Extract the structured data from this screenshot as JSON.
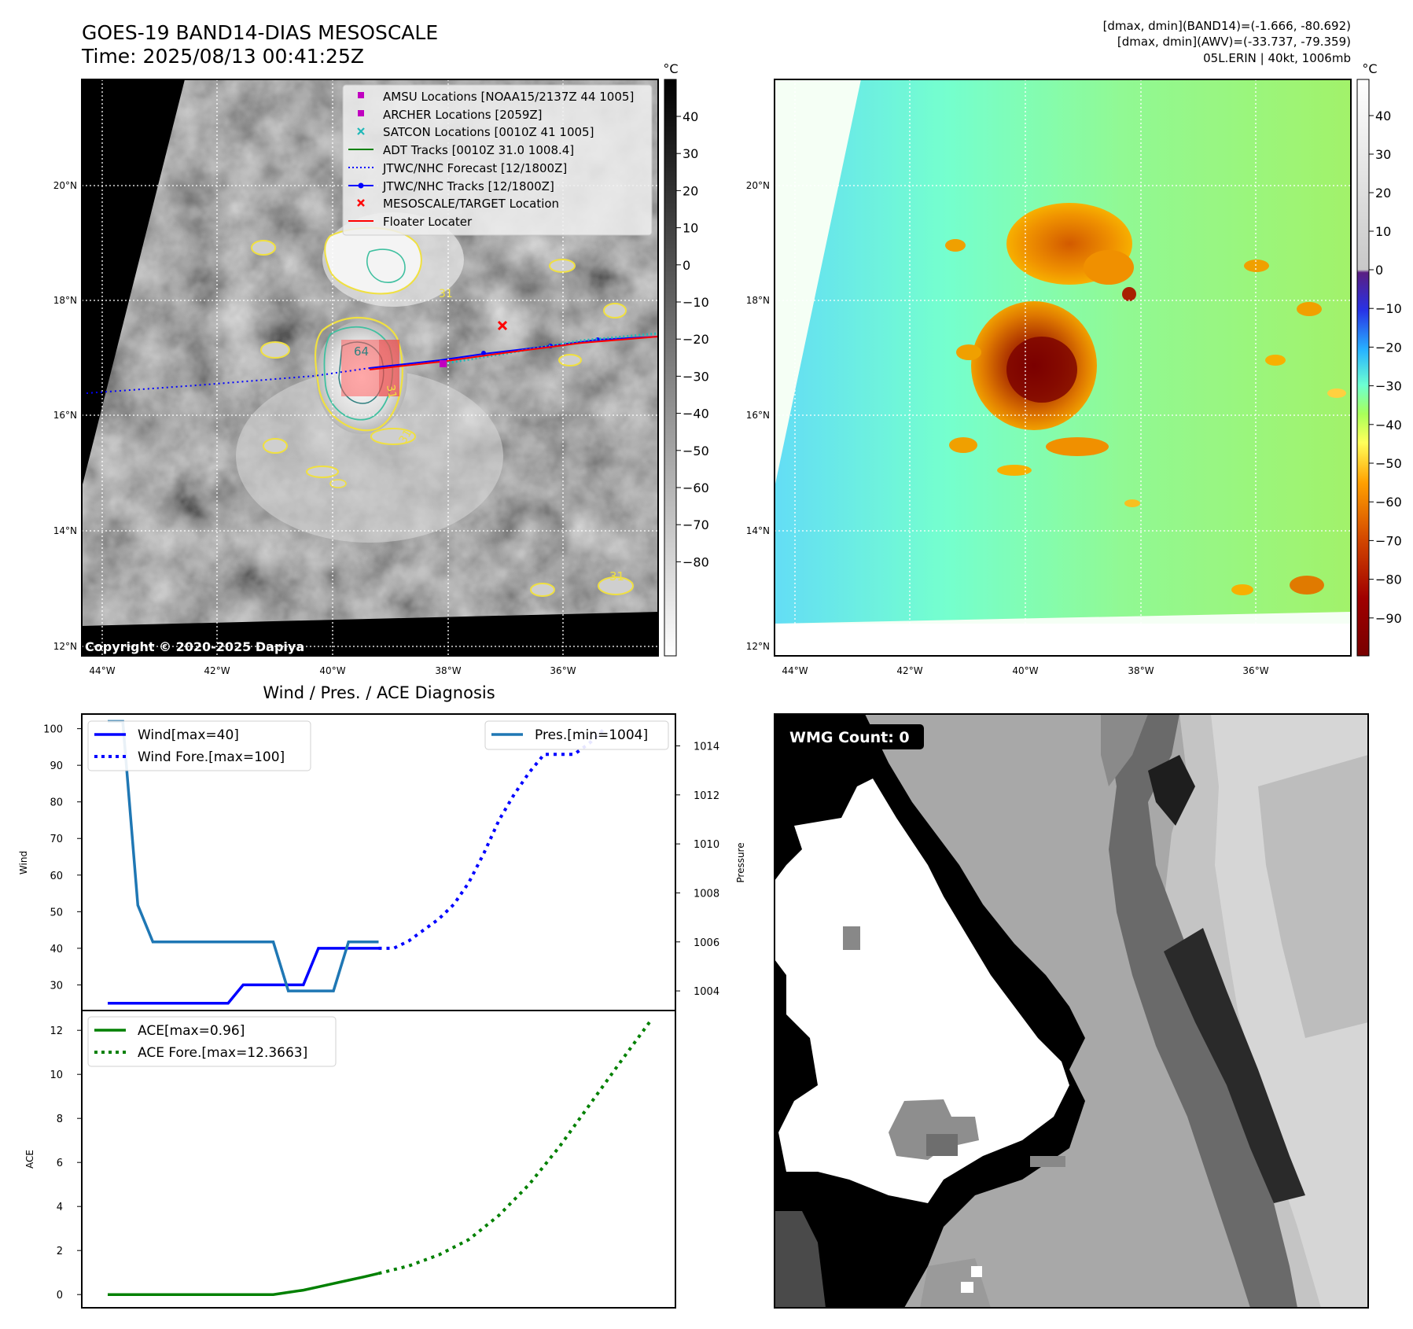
{
  "header": {
    "title_line1": "GOES-19 BAND14-DIAS MESOSCALE",
    "title_line2": "Time: 2025/08/13 00:41:25Z",
    "info_line1": "[dmax, dmin](BAND14)=(-1.666, -80.692)",
    "info_line2": "[dmax, dmin](AWV)=(-33.737, -79.359)",
    "info_line3": "05L.ERIN | 40kt, 1006mb"
  },
  "map_axes": {
    "lat_labels": [
      "20°N",
      "18°N",
      "16°N",
      "14°N",
      "12°N"
    ],
    "lon_labels": [
      "44°W",
      "42°W",
      "40°W",
      "38°W",
      "36°W"
    ]
  },
  "ir_panel": {
    "copyright": "Copyright © 2020-2025 Dapiya",
    "colorbar_unit": "°C",
    "colorbar_ticks": [
      "40",
      "30",
      "20",
      "10",
      "0",
      "−10",
      "−20",
      "−30",
      "−40",
      "−50",
      "−60",
      "−70",
      "−80"
    ],
    "contour_labels": [
      "64",
      "31",
      "31",
      "31",
      "31"
    ],
    "legend": [
      {
        "label": "AMSU Locations [NOAA15/2137Z 44 1005]",
        "marker": "square",
        "color": "#c000c0"
      },
      {
        "label": "ARCHER Locations [2059Z]",
        "marker": "square",
        "color": "#c000c0"
      },
      {
        "label": "SATCON Locations [0010Z 41 1005]",
        "marker": "x",
        "color": "#20b8b8"
      },
      {
        "label": "ADT Tracks [0010Z 31.0 1008.4]",
        "marker": "line",
        "color": "#008000"
      },
      {
        "label": "JTWC/NHC Forecast [12/1800Z]",
        "marker": "dotted",
        "color": "#0000ff"
      },
      {
        "label": "JTWC/NHC Tracks [12/1800Z]",
        "marker": "line-dot",
        "color": "#0000ff"
      },
      {
        "label": "MESOSCALE/TARGET Location",
        "marker": "x",
        "color": "#ff0000"
      },
      {
        "label": "Floater Locater",
        "marker": "line",
        "color": "#ff0000"
      }
    ]
  },
  "awv_panel": {
    "colorbar_unit": "°C",
    "colorbar_ticks": [
      "40",
      "30",
      "20",
      "10",
      "0",
      "−10",
      "−20",
      "−30",
      "−40",
      "−50",
      "−60",
      "−70",
      "−80",
      "−90"
    ]
  },
  "wmg_panel": {
    "badge": "WMG Count: 0"
  },
  "chart_data": [
    {
      "type": "line",
      "title": "Wind / Pres. / ACE Diagnosis",
      "ylabel": "Wind",
      "y2label": "Pressure",
      "ylim": [
        23,
        104
      ],
      "y2lim": [
        1003.2,
        1015.3
      ],
      "yticks": [
        "100",
        "90",
        "80",
        "70",
        "60",
        "50",
        "40",
        "30"
      ],
      "y2ticks": [
        "1014",
        "1012",
        "1010",
        "1008",
        "1006",
        "1004"
      ],
      "legend_left": [
        "Wind[max=40]",
        "Wind Fore.[max=100]"
      ],
      "legend_right": [
        "Pres.[min=1004]"
      ],
      "series": [
        {
          "name": "Wind[max=40]",
          "axis": "left",
          "color": "#0000ff",
          "style": "solid",
          "x": [
            0,
            1,
            2,
            3,
            4,
            5,
            6,
            7,
            8,
            9,
            10,
            11,
            12,
            13,
            14,
            15,
            16,
            17,
            18
          ],
          "values": [
            25,
            25,
            25,
            25,
            25,
            25,
            25,
            25,
            25,
            30,
            30,
            30,
            30,
            30,
            40,
            40,
            40,
            40,
            40
          ]
        },
        {
          "name": "Wind Fore.[max=100]",
          "axis": "left",
          "color": "#0000ff",
          "style": "dotted",
          "x": [
            18,
            19,
            20,
            21,
            22,
            23,
            24,
            25,
            26,
            27,
            28,
            29,
            30,
            31,
            32,
            33
          ],
          "values": [
            40,
            40,
            42,
            45,
            48,
            52,
            58,
            66,
            75,
            82,
            88,
            93,
            93,
            93,
            96,
            100
          ]
        },
        {
          "name": "Pres.[min=1004]",
          "axis": "right",
          "color": "#1f77b4",
          "style": "solid",
          "x": [
            0,
            1,
            2,
            3,
            4,
            5,
            6,
            7,
            8,
            9,
            10,
            11,
            12,
            13,
            14,
            15,
            16,
            17,
            18
          ],
          "values": [
            1015,
            1015,
            1007.5,
            1006,
            1006,
            1006,
            1006,
            1006,
            1006,
            1006,
            1006,
            1006,
            1004,
            1004,
            1004,
            1004,
            1006,
            1006,
            1006
          ]
        }
      ]
    },
    {
      "type": "line",
      "ylabel": "ACE",
      "ylim": [
        -0.6,
        12.9
      ],
      "yticks": [
        "12",
        "10",
        "8",
        "6",
        "4",
        "2",
        "0"
      ],
      "legend": [
        "ACE[max=0.96]",
        "ACE Fore.[max=12.3663]"
      ],
      "series": [
        {
          "name": "ACE[max=0.96]",
          "color": "#008000",
          "style": "solid",
          "x": [
            0,
            1,
            2,
            3,
            4,
            5,
            6,
            7,
            8,
            9,
            10,
            11,
            12,
            13,
            14,
            15,
            16,
            17,
            18
          ],
          "values": [
            0,
            0,
            0,
            0,
            0,
            0,
            0,
            0,
            0,
            0,
            0,
            0,
            0.1,
            0.2,
            0.35,
            0.5,
            0.65,
            0.8,
            0.96
          ]
        },
        {
          "name": "ACE Fore.[max=12.3663]",
          "color": "#008000",
          "style": "dotted",
          "x": [
            18,
            20,
            22,
            24,
            26,
            28,
            30,
            32,
            34,
            36
          ],
          "values": [
            0.96,
            1.3,
            1.8,
            2.5,
            3.6,
            5.0,
            6.7,
            8.6,
            10.5,
            12.3663
          ]
        }
      ]
    }
  ]
}
